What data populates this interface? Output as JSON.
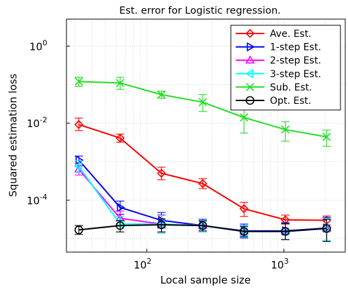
{
  "chart_data": {
    "type": "line",
    "title": "Est. error for Logistic regression.",
    "xlabel": "Local sample size",
    "ylabel": "Squared estimation loss",
    "xscale": "log",
    "yscale": "log",
    "xlim": [
      26,
      2800
    ],
    "ylim": [
      4.5e-06,
      5
    ],
    "grid": true,
    "legend_position": "top-right",
    "x_ticks": [
      {
        "value": 100,
        "base": "10",
        "exp": "2"
      },
      {
        "value": 1000,
        "base": "10",
        "exp": "3"
      }
    ],
    "y_ticks": [
      {
        "value": 1,
        "base": "10",
        "exp": "0"
      },
      {
        "value": 0.01,
        "base": "10",
        "exp": "-2"
      },
      {
        "value": 0.0001,
        "base": "10",
        "exp": "-4"
      }
    ],
    "x": [
      32,
      64,
      128,
      256,
      512,
      1024,
      2048
    ],
    "series": [
      {
        "name": "Ave. Est.",
        "color": "#ff0000",
        "marker": "diamond",
        "values": [
          0.0092,
          0.0041,
          0.0005,
          0.00027,
          6e-05,
          3.1e-05,
          3e-05
        ],
        "err_low": [
          0.0064,
          0.0032,
          0.00034,
          0.0002,
          3.8e-05,
          2.4e-05,
          2.3e-05
        ],
        "err_high": [
          0.0135,
          0.0052,
          0.00072,
          0.00036,
          8.8e-05,
          4.1e-05,
          3.9e-05
        ]
      },
      {
        "name": "1-step Est.",
        "color": "#0000ff",
        "marker": "triangle-right",
        "values": [
          0.0011,
          6.5e-05,
          3e-05,
          2.2e-05,
          1.6e-05,
          1.6e-05,
          1.9e-05
        ],
        "err_low": [
          0.00078,
          4.3e-05,
          1.9e-05,
          1.5e-05,
          1.05e-05,
          9.5e-06,
          9e-06
        ],
        "err_high": [
          0.0014,
          9.5e-05,
          4.8e-05,
          3.2e-05,
          2.4e-05,
          2.6e-05,
          3.6e-05
        ]
      },
      {
        "name": "2-step Est.",
        "color": "#ff00ff",
        "marker": "triangle-up",
        "values": [
          0.00063,
          3.4e-05,
          2.4e-05,
          2.2e-05,
          1.55e-05,
          1.55e-05,
          1.85e-05
        ],
        "err_low": [
          0.00045,
          2.2e-05,
          1.4e-05,
          1.5e-05,
          1.1e-05,
          9.5e-06,
          9e-06
        ],
        "err_high": [
          0.00088,
          5.2e-05,
          4.2e-05,
          3e-05,
          2.2e-05,
          2.5e-05,
          3.4e-05
        ]
      },
      {
        "name": "3-step Est.",
        "color": "#00ffff",
        "marker": "triangle-left",
        "values": [
          0.00075,
          2.4e-05,
          2.4e-05,
          2.2e-05,
          1.55e-05,
          1.55e-05,
          1.85e-05
        ],
        "err_low": [
          0.00053,
          1.5e-05,
          1.4e-05,
          1.5e-05,
          1.1e-05,
          9.5e-06,
          9e-06
        ],
        "err_high": [
          0.00105,
          3.8e-05,
          4e-05,
          3e-05,
          2.2e-05,
          2.5e-05,
          3.4e-05
        ]
      },
      {
        "name": "Sub. Est.",
        "color": "#22dd22",
        "marker": "x",
        "values": [
          0.12,
          0.11,
          0.055,
          0.035,
          0.014,
          0.0068,
          0.0044
        ],
        "err_low": [
          0.09,
          0.075,
          0.044,
          0.02,
          0.0055,
          0.0034,
          0.0025
        ],
        "err_high": [
          0.155,
          0.155,
          0.068,
          0.055,
          0.027,
          0.011,
          0.0066
        ]
      },
      {
        "name": "Opt. Est.",
        "color": "#000000",
        "marker": "circle",
        "values": [
          1.7e-05,
          2.2e-05,
          2.3e-05,
          2.2e-05,
          1.55e-05,
          1.55e-05,
          1.85e-05
        ],
        "err_low": [
          1.3e-05,
          1.5e-05,
          1.5e-05,
          1.6e-05,
          1.15e-05,
          9.5e-06,
          8.5e-06
        ],
        "err_high": [
          2.2e-05,
          3e-05,
          3.3e-05,
          2.9e-05,
          2.1e-05,
          2.5e-05,
          3.2e-05
        ]
      }
    ]
  }
}
